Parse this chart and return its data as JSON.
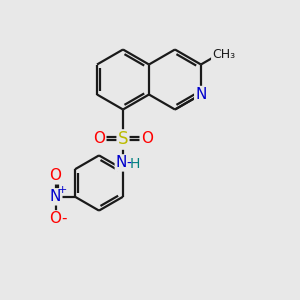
{
  "bg_color": "#e8e8e8",
  "bond_color": "#1a1a1a",
  "bond_width": 1.6,
  "atom_colors": {
    "N": "#0000cc",
    "S": "#bbbb00",
    "O": "#ff0000",
    "H": "#008080",
    "C": "#1a1a1a",
    "Nno2": "#0000cc",
    "Ono2": "#ff0000"
  },
  "font_size": 11
}
